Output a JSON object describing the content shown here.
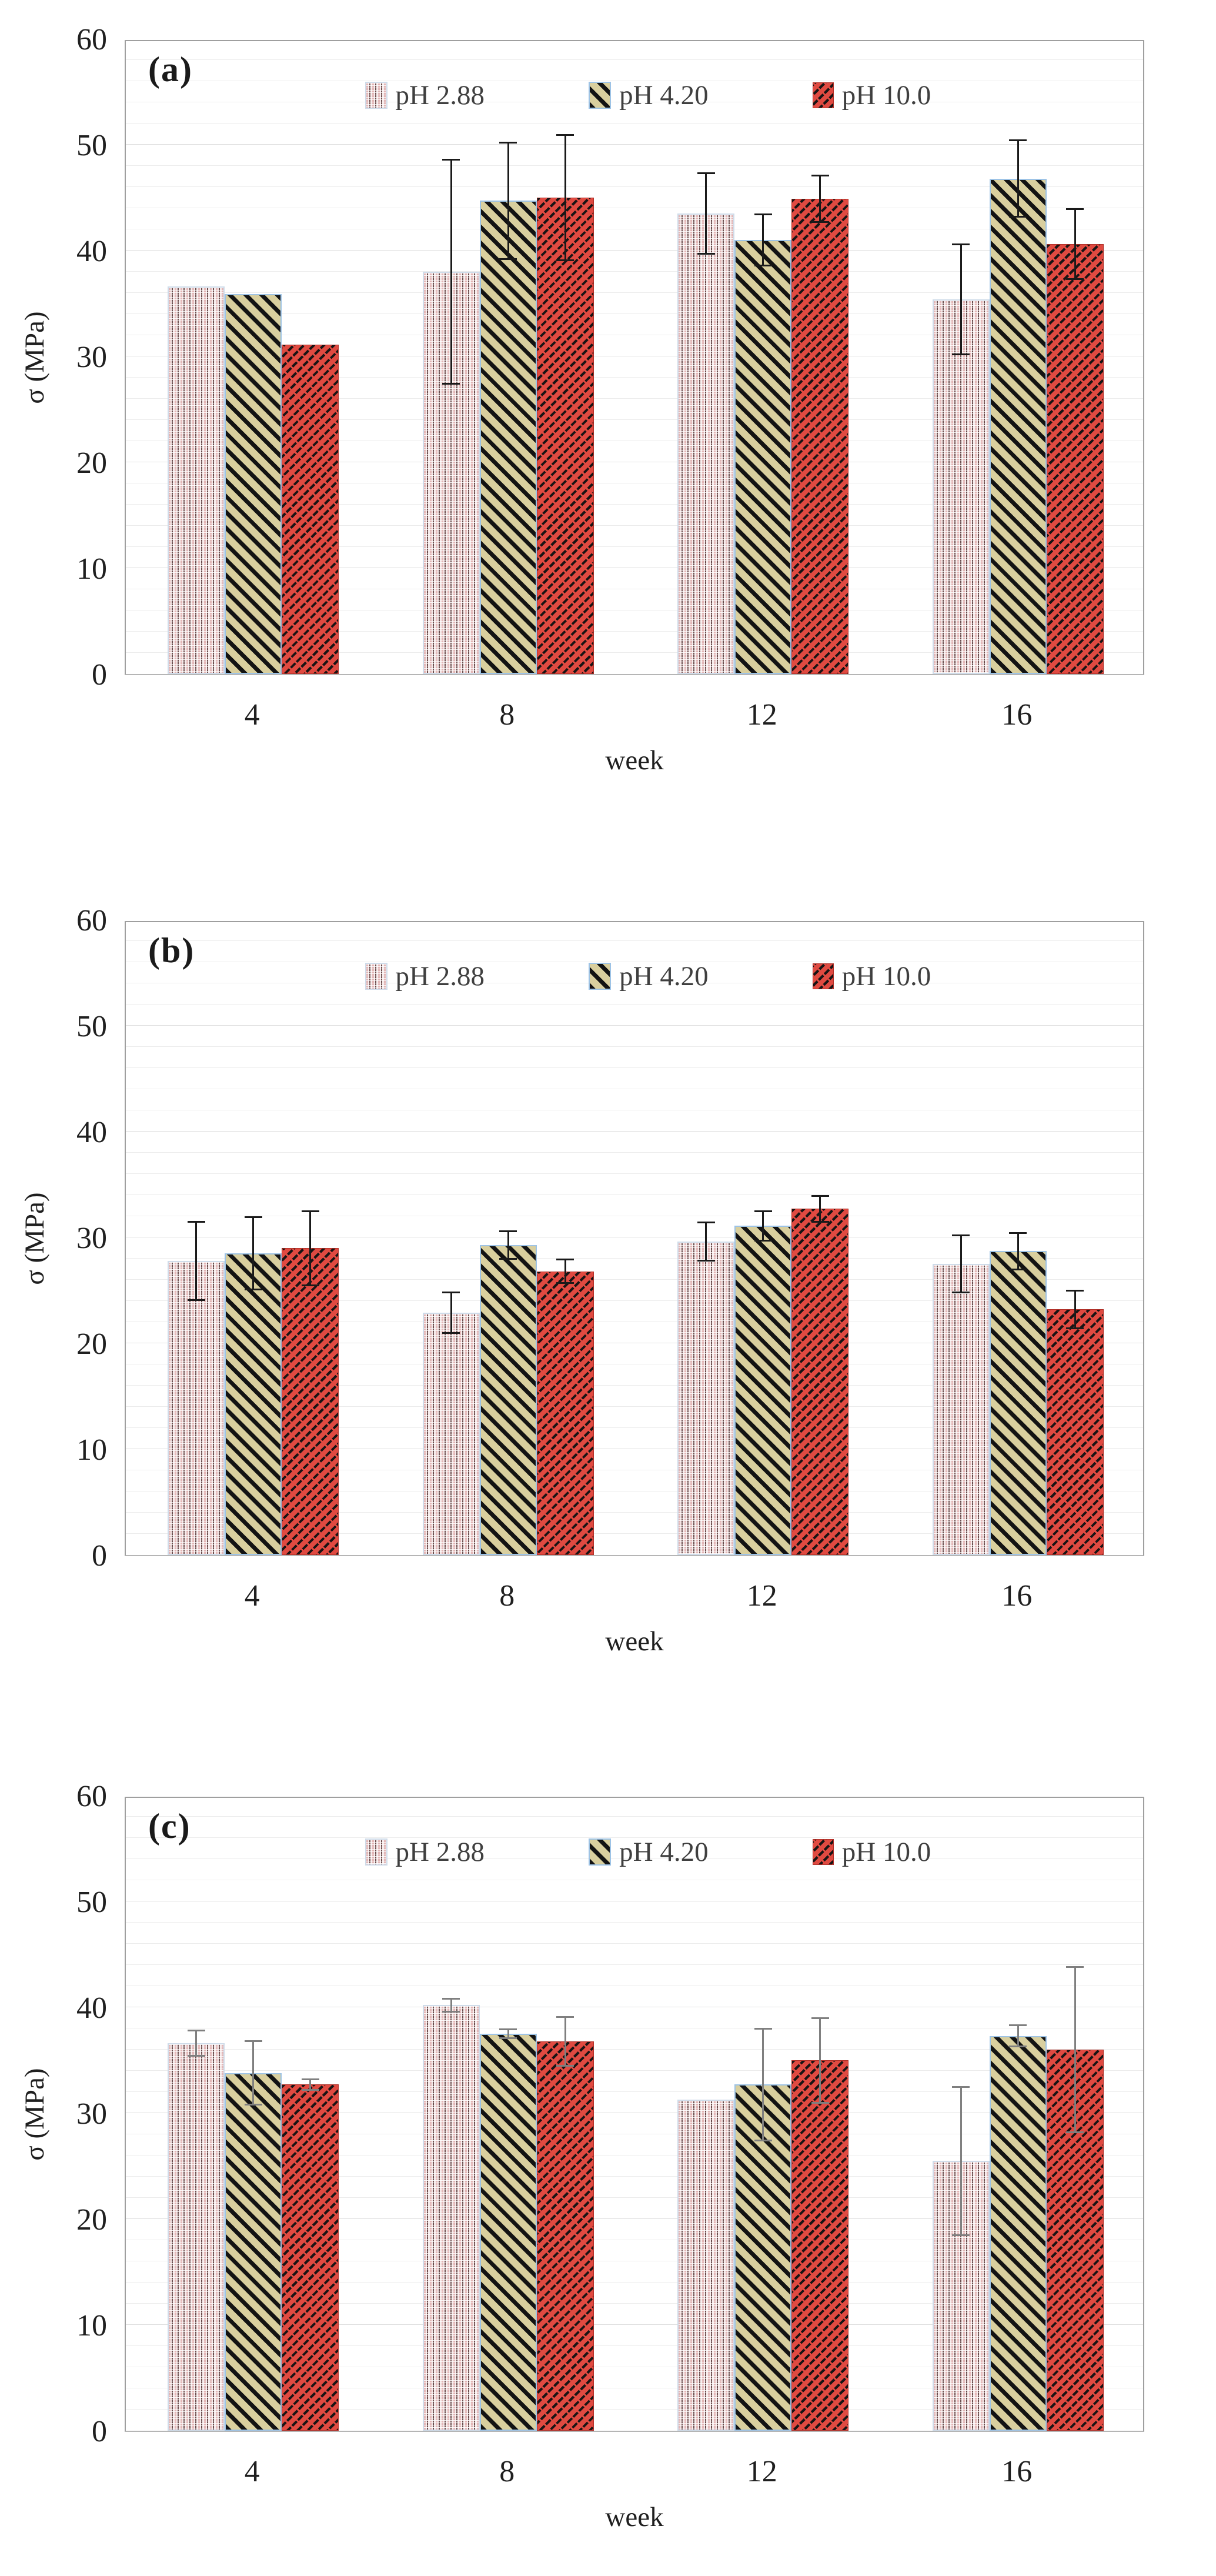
{
  "figure": {
    "background": "#ffffff",
    "text_color": "#1f1f1f",
    "gridline_color": "#ececec",
    "axis_border_color": "#9f9f9f",
    "series_style_colors": {
      "pH 2.88": {
        "fill": "#f6eaea",
        "pattern": "pink-vertical-dot-weave",
        "border": "#cfdcea"
      },
      "pH 4.20": {
        "fill": "#d9cf9e",
        "pattern": "black-diagonal-stripes",
        "border": "#9dc3e6"
      },
      "pH 10.0": {
        "fill": "#e04a41",
        "pattern": "black-diagonal-brick-dashes",
        "border": "#b03028"
      }
    }
  },
  "chart_data": [
    {
      "type": "bar",
      "panel": "(a)",
      "xlabel": "week",
      "ylabel": "σ (MPa)",
      "ylim": [
        0,
        60
      ],
      "yticks": [
        0,
        10,
        20,
        30,
        40,
        50,
        60
      ],
      "minor_grid_step": 2,
      "grid": true,
      "legend_position": "inside-top",
      "categories": [
        "4",
        "8",
        "12",
        "16"
      ],
      "error_color": "#1a1a1a",
      "series": [
        {
          "name": "pH 2.88",
          "values": [
            36.6,
            38.0,
            43.5,
            35.4
          ],
          "errors": [
            0,
            10.6,
            3.8,
            5.2
          ]
        },
        {
          "name": "pH 4.20",
          "values": [
            35.9,
            44.7,
            41.0,
            46.8
          ],
          "errors": [
            0,
            5.5,
            2.4,
            3.6
          ]
        },
        {
          "name": "pH 10.0",
          "values": [
            31.1,
            45.0,
            44.9,
            40.6
          ],
          "errors": [
            0,
            5.9,
            2.2,
            3.3
          ]
        }
      ]
    },
    {
      "type": "bar",
      "panel": "(b)",
      "xlabel": "week",
      "ylabel": "σ (MPa)",
      "ylim": [
        0,
        60
      ],
      "yticks": [
        0,
        10,
        20,
        30,
        40,
        50,
        60
      ],
      "minor_grid_step": 2,
      "grid": true,
      "legend_position": "inside-top",
      "categories": [
        "4",
        "8",
        "12",
        "16"
      ],
      "error_color": "#1a1a1a",
      "series": [
        {
          "name": "pH 2.88",
          "values": [
            27.8,
            22.9,
            29.6,
            27.5
          ],
          "errors": [
            3.7,
            1.9,
            1.8,
            2.7
          ]
        },
        {
          "name": "pH 4.20",
          "values": [
            28.5,
            29.3,
            31.1,
            28.7
          ],
          "errors": [
            3.4,
            1.3,
            1.4,
            1.7
          ]
        },
        {
          "name": "pH 10.0",
          "values": [
            29.0,
            26.8,
            32.7,
            23.2
          ],
          "errors": [
            3.5,
            1.1,
            1.2,
            1.8
          ]
        }
      ]
    },
    {
      "type": "bar",
      "panel": "(c)",
      "xlabel": "week",
      "ylabel": "σ (MPa)",
      "ylim": [
        0,
        60
      ],
      "yticks": [
        0,
        10,
        20,
        30,
        40,
        50,
        60
      ],
      "minor_grid_step": 2,
      "grid": true,
      "legend_position": "inside-top",
      "categories": [
        "4",
        "8",
        "12",
        "16"
      ],
      "error_color": "#7f7f7f",
      "series": [
        {
          "name": "pH 2.88",
          "values": [
            36.6,
            40.2,
            31.3,
            25.5
          ],
          "errors": [
            1.2,
            0.6,
            0,
            7.0
          ]
        },
        {
          "name": "pH 4.20",
          "values": [
            33.8,
            37.5,
            32.7,
            37.3
          ],
          "errors": [
            3.0,
            0.4,
            5.3,
            1.0
          ]
        },
        {
          "name": "pH 10.0",
          "values": [
            32.7,
            36.8,
            35.0,
            36.0
          ],
          "errors": [
            0.5,
            2.3,
            4.0,
            7.8
          ]
        }
      ]
    }
  ]
}
